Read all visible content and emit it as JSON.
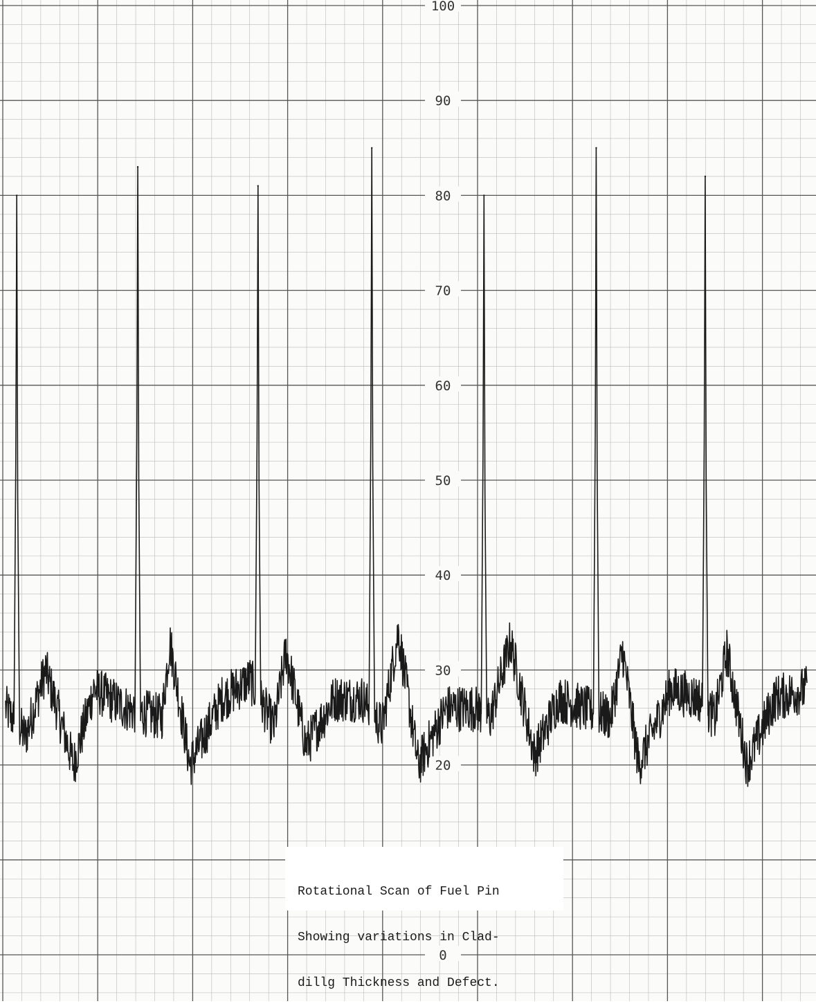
{
  "chart_data": {
    "type": "line",
    "title": "",
    "caption_lines": [
      "Rotational Scan of Fuel Pin",
      "Showing variations in Clad-",
      "dillg Thickness and Defect."
    ],
    "xlabel": "",
    "ylabel": "",
    "ylim": [
      0,
      100
    ],
    "y_ticks": [
      "0",
      "20",
      "30",
      "40",
      "50",
      "60",
      "70",
      "80",
      "90",
      "100"
    ],
    "grid": true,
    "x_range": [
      0,
      100
    ],
    "series": [
      {
        "color": "#1a1a1a",
        "baseline": [
          [
            0.0,
            26
          ],
          [
            2.5,
            23
          ],
          [
            5.0,
            30
          ],
          [
            8.5,
            20
          ],
          [
            11.0,
            28
          ],
          [
            15.0,
            26
          ],
          [
            19.5,
            25
          ],
          [
            20.5,
            33
          ],
          [
            23.0,
            20
          ],
          [
            27.0,
            27
          ],
          [
            30.5,
            29
          ],
          [
            33.5,
            24
          ],
          [
            35.0,
            32
          ],
          [
            37.5,
            22
          ],
          [
            41.0,
            27
          ],
          [
            44.5,
            27
          ],
          [
            47.0,
            24
          ],
          [
            49.0,
            34
          ],
          [
            51.5,
            20
          ],
          [
            55.0,
            26
          ],
          [
            58.5,
            26
          ],
          [
            60.5,
            25
          ],
          [
            63.0,
            33
          ],
          [
            66.0,
            21
          ],
          [
            69.0,
            27
          ],
          [
            72.0,
            26
          ],
          [
            75.5,
            25
          ],
          [
            77.0,
            32
          ],
          [
            79.0,
            20
          ],
          [
            83.0,
            28
          ],
          [
            86.5,
            27
          ],
          [
            88.5,
            25
          ],
          [
            90.0,
            32
          ],
          [
            92.5,
            20
          ],
          [
            96.0,
            27
          ],
          [
            100.0,
            28
          ]
        ],
        "noise_amplitude": 2.5,
        "spikes": [
          {
            "x": 1.4,
            "y": 80
          },
          {
            "x": 16.5,
            "y": 83
          },
          {
            "x": 31.5,
            "y": 81
          },
          {
            "x": 45.7,
            "y": 85
          },
          {
            "x": 59.7,
            "y": 80
          },
          {
            "x": 73.7,
            "y": 85
          },
          {
            "x": 87.3,
            "y": 82
          }
        ]
      }
    ]
  }
}
